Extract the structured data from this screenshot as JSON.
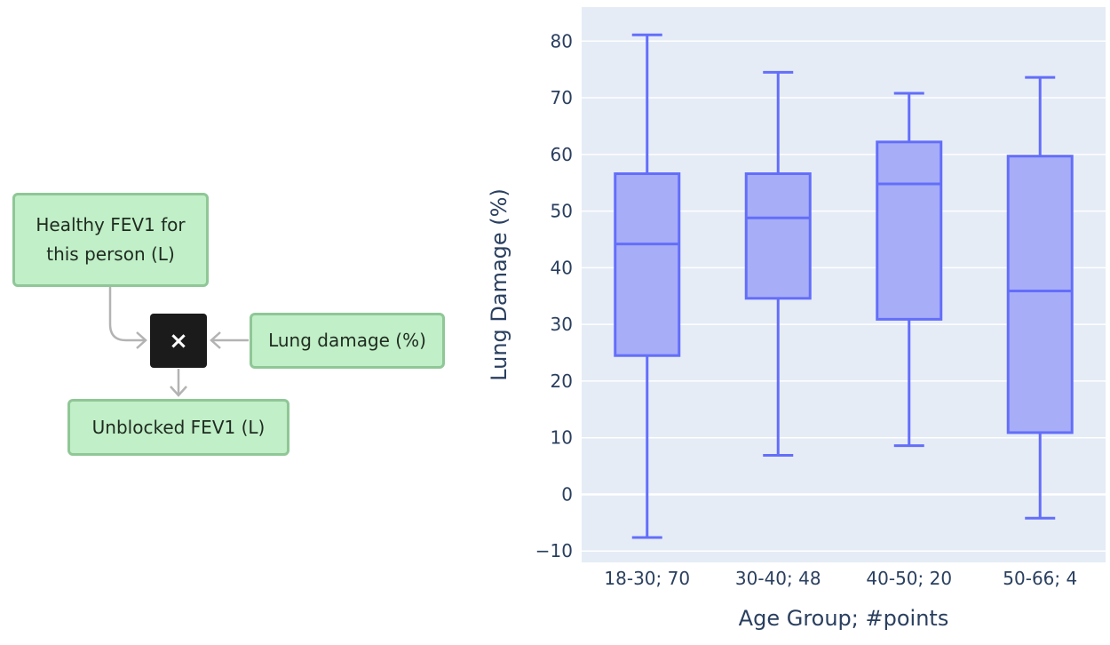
{
  "diagram": {
    "nodes": {
      "healthy": "Healthy FEV1 for this person (L)",
      "damage": "Lung damage (%)",
      "unblocked": "Unblocked FEV1 (L)",
      "operator": "×"
    },
    "colors": {
      "node_fill": "#c1efc7",
      "node_border": "#8fc796",
      "operator_fill": "#1b1b1b",
      "arrow": "#b3b3b3"
    }
  },
  "chart_data": {
    "type": "box",
    "title": "",
    "xlabel": "Age Group; #points",
    "ylabel": "Lung Damage (%)",
    "ylim": [
      -12,
      86
    ],
    "yticks": [
      -10,
      0,
      10,
      20,
      30,
      40,
      50,
      60,
      70,
      80
    ],
    "yticklabels": [
      "−10",
      "0",
      "10",
      "20",
      "30",
      "40",
      "50",
      "60",
      "70",
      "80"
    ],
    "grid": true,
    "categories": [
      "18-30; 70",
      "30-40; 48",
      "40-50; 20",
      "50-66; 4"
    ],
    "boxes": [
      {
        "min": -7.6,
        "q1": 24.5,
        "median": 44.2,
        "q3": 56.6,
        "max": 81.1
      },
      {
        "min": 6.9,
        "q1": 34.6,
        "median": 48.8,
        "q3": 56.6,
        "max": 74.5
      },
      {
        "min": 8.6,
        "q1": 30.9,
        "median": 54.8,
        "q3": 62.2,
        "max": 70.8
      },
      {
        "min": -4.2,
        "q1": 10.9,
        "median": 35.9,
        "q3": 59.7,
        "max": 73.6
      }
    ],
    "colors": {
      "box_line": "#636efa",
      "box_fill": "#a7adf7",
      "plot_bg": "#e5ecf6",
      "grid": "#ffffff"
    }
  }
}
